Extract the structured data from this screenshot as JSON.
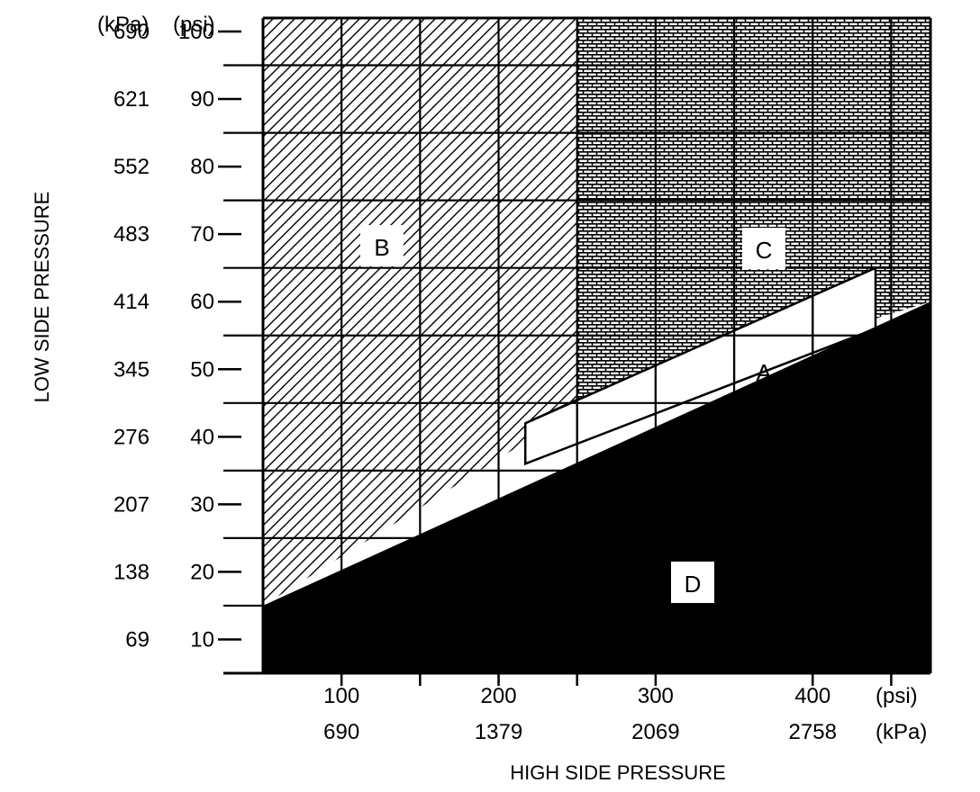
{
  "chart_data": {
    "type": "area",
    "y_axis": {
      "title": "LOW SIDE PRESSURE",
      "unit_kpa": "(kPa)",
      "unit_psi": "(psi)",
      "psi_ticks": [
        "10",
        "20",
        "30",
        "40",
        "50",
        "60",
        "70",
        "80",
        "90",
        "100"
      ],
      "kpa_ticks": [
        "69",
        "138",
        "207",
        "276",
        "345",
        "414",
        "483",
        "552",
        "621",
        "690"
      ],
      "range_psi": [
        5,
        102
      ]
    },
    "x_axis": {
      "title": "HIGH SIDE PRESSURE",
      "unit_psi": "(psi)",
      "unit_kpa": "(kPa)",
      "psi_ticks": [
        "100",
        "200",
        "300",
        "400"
      ],
      "kpa_ticks": [
        "690",
        "1379",
        "2069",
        "2758"
      ],
      "range_psi": [
        50,
        475
      ]
    },
    "regions": [
      {
        "label": "A",
        "fill": "white",
        "vertices_psi": [
          [
            217,
            36
          ],
          [
            217,
            42
          ],
          [
            440,
            65
          ],
          [
            440,
            56
          ]
        ]
      },
      {
        "label": "B",
        "fill": "diagonal hatch",
        "vertices_psi": [
          [
            50,
            15
          ],
          [
            50,
            102
          ],
          [
            250,
            102
          ],
          [
            250,
            44
          ]
        ]
      },
      {
        "label": "C",
        "fill": "brick pattern",
        "vertices_psi": [
          [
            250,
            44
          ],
          [
            250,
            102
          ],
          [
            475,
            102
          ],
          [
            475,
            60
          ]
        ]
      },
      {
        "label": "D",
        "fill": "solid black",
        "vertices_psi": [
          [
            50,
            5
          ],
          [
            50,
            15
          ],
          [
            475,
            60
          ],
          [
            475,
            5
          ]
        ]
      }
    ],
    "grid": true
  }
}
